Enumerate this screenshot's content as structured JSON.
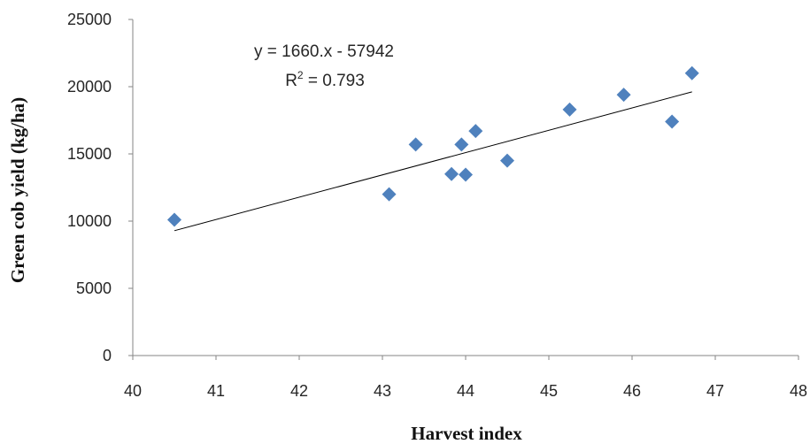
{
  "chart_data": {
    "type": "scatter",
    "title": "",
    "xlabel": "Harvest index",
    "ylabel": "Green cob yield (kg/ha)",
    "xlim": [
      40,
      48
    ],
    "ylim": [
      0,
      25000
    ],
    "xticks": [
      40,
      41,
      42,
      43,
      44,
      45,
      46,
      47,
      48
    ],
    "yticks": [
      0,
      5000,
      10000,
      15000,
      20000,
      25000
    ],
    "xtick_labels": [
      "40",
      "41",
      "42",
      "43",
      "44",
      "45",
      "46",
      "47",
      "48"
    ],
    "ytick_labels": [
      "0",
      "5000",
      "10000",
      "15000",
      "20000",
      "25000"
    ],
    "grid": false,
    "legend": "none",
    "marker": "diamond",
    "marker_color": "#4F81BD",
    "series": [
      {
        "x": [
          40.5,
          43.08,
          43.4,
          43.83,
          43.95,
          44.0,
          44.12,
          44.5,
          45.25,
          45.9,
          46.48,
          46.72
        ],
        "y": [
          10100,
          12000,
          15700,
          13500,
          15700,
          13450,
          16700,
          14500,
          18300,
          19400,
          17400,
          21000
        ]
      }
    ],
    "trendline": {
      "type": "linear",
      "slope": 1660,
      "intercept": -57942,
      "x_range": [
        40.5,
        46.72
      ],
      "color": "#000000",
      "equation_text": "y = 1660.x - 57942",
      "r2_label": "R",
      "r2_value_text": " = 0.793"
    }
  }
}
